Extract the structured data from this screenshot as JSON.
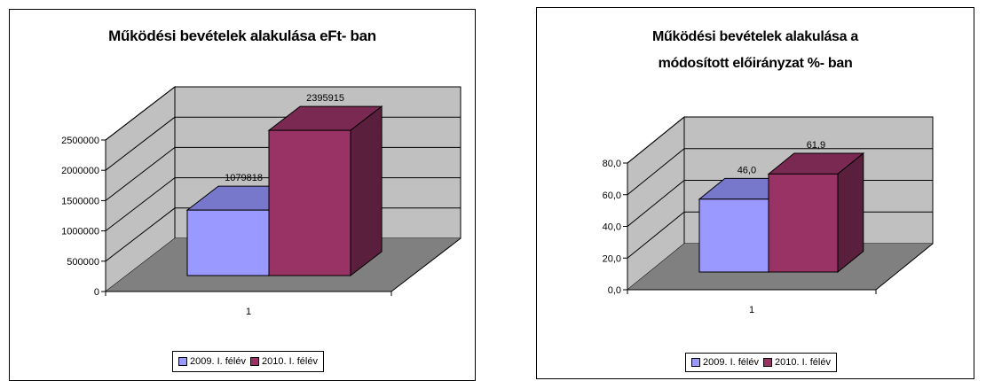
{
  "colors": {
    "series1_front": "#9999ff",
    "series1_top": "#7777cc",
    "series1_side": "#6666aa",
    "series2_front": "#993366",
    "series2_top": "#7a2952",
    "series2_side": "#5a1f3d",
    "wall": "#c0c0c0",
    "floor": "#808080"
  },
  "chart_data": [
    {
      "type": "bar",
      "title": "Működési bevételek alakulása eFt- ban",
      "categories": [
        "1"
      ],
      "series": [
        {
          "name": "2009. I. félév",
          "values": [
            1079818
          ],
          "label": "1079818"
        },
        {
          "name": "2010. I. félév",
          "values": [
            2395915
          ],
          "label": "2395915"
        }
      ],
      "ylim": [
        0,
        2500000
      ],
      "yticks": [
        "0",
        "500000",
        "1000000",
        "1500000",
        "2000000",
        "2500000"
      ],
      "grid": true,
      "legend": "bottom",
      "three_d": true
    },
    {
      "type": "bar",
      "title_lines": [
        "Működési bevételek alakulása a",
        "módosított előirányzat %- ban"
      ],
      "categories": [
        "1"
      ],
      "series": [
        {
          "name": "2009. I. félév",
          "values": [
            46.0
          ],
          "label": "46,0"
        },
        {
          "name": "2010. I. félév",
          "values": [
            61.9
          ],
          "label": "61,9"
        }
      ],
      "ylim": [
        0,
        80
      ],
      "yticks": [
        "0,0",
        "20,0",
        "40,0",
        "60,0",
        "80,0"
      ],
      "grid": true,
      "legend": "bottom",
      "three_d": true
    }
  ]
}
